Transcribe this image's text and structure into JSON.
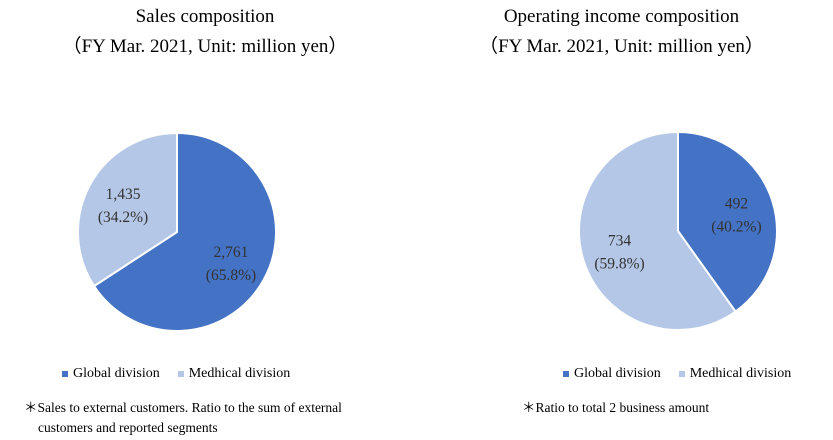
{
  "colors": {
    "global": "#4472c4",
    "medhical": "#b4c7e7"
  },
  "charts": {
    "sales": {
      "title_line1": "Sales composition",
      "title_line2": "（FY Mar. 2021, Unit: million yen）",
      "note_line1": "＊Sales to external customers. Ratio to the sum of external",
      "note_line2": "customers and reported segments"
    },
    "income": {
      "title_line1": "Operating income composition",
      "title_line2": "（FY Mar. 2021, Unit: million yen）",
      "note_line1": "＊Ratio to total 2 business amount"
    }
  },
  "chart_data": [
    {
      "type": "pie",
      "title": "Sales composition",
      "subtitle": "（FY Mar. 2021, Unit: million yen）",
      "categories": [
        "Global division",
        "Medhical division"
      ],
      "values": [
        2761,
        1435
      ],
      "value_labels": [
        "2,761",
        "1,435"
      ],
      "percent_labels": [
        "(65.8%)",
        "(34.2%)"
      ],
      "legend": "bottom"
    },
    {
      "type": "pie",
      "title": "Operating income composition",
      "subtitle": "（FY Mar. 2021, Unit: million yen）",
      "categories": [
        "Global division",
        "Medhical division"
      ],
      "values": [
        492,
        734
      ],
      "value_labels": [
        "492",
        "734"
      ],
      "percent_labels": [
        "(40.2%)",
        "(59.8%)"
      ],
      "legend": "bottom"
    }
  ]
}
